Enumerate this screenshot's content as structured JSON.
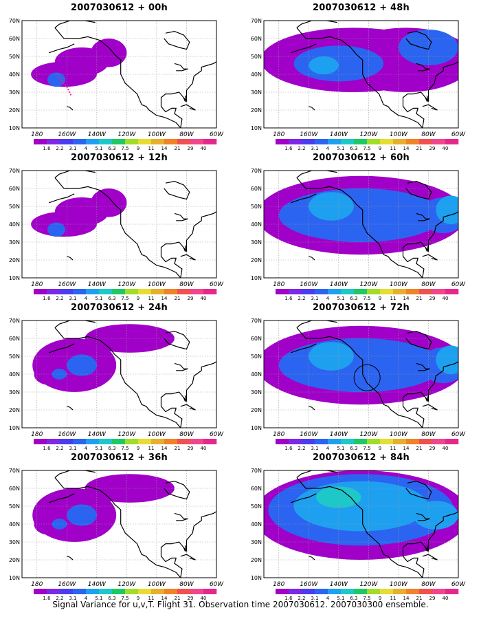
{
  "figure": {
    "caption": "Signal Variance for u,v,T. Flight 31. Observation time 2007030612. 2007030300 ensemble."
  },
  "axes": {
    "lat_labels": [
      "10N",
      "20N",
      "30N",
      "40N",
      "50N",
      "60N",
      "70N"
    ],
    "lon_labels": [
      "180",
      "160W",
      "140W",
      "120W",
      "100W",
      "80W",
      "60W"
    ]
  },
  "colorbar": {
    "labels": [
      "1.6",
      "2.2",
      "3.1",
      "4",
      "5.1",
      "6.3",
      "7.5",
      "9",
      "11",
      "14",
      "21",
      "29",
      "40"
    ],
    "colors": [
      "#a000c8",
      "#7d28e6",
      "#4a3cf0",
      "#2b64f0",
      "#1ea0f0",
      "#1ec8c8",
      "#1ec864",
      "#a0dc28",
      "#e6dc32",
      "#e6af2d",
      "#f08228",
      "#f05050",
      "#f0468c",
      "#e6288c"
    ]
  },
  "panels": [
    {
      "title": "2007030612 + 00h",
      "intensity": 1
    },
    {
      "title": "2007030612 + 12h",
      "intensity": 1
    },
    {
      "title": "2007030612 + 24h",
      "intensity": 2
    },
    {
      "title": "2007030612 + 36h",
      "intensity": 2
    },
    {
      "title": "2007030612 + 48h",
      "intensity": 3
    },
    {
      "title": "2007030612 + 60h",
      "intensity": 4
    },
    {
      "title": "2007030612 + 72h",
      "intensity": 4
    },
    {
      "title": "2007030612 + 84h",
      "intensity": 5
    }
  ],
  "colors": {
    "field_low": "#a000c8",
    "field_mid": "#7d28e6",
    "field_high": "#4a3cf0",
    "field_higher": "#2b64f0",
    "field_peak": "#1ea0f0",
    "field_max": "#1ec8c8",
    "coast": "#000000",
    "grid": "#9a9a9a",
    "flight_track": "#ff1e8c"
  }
}
